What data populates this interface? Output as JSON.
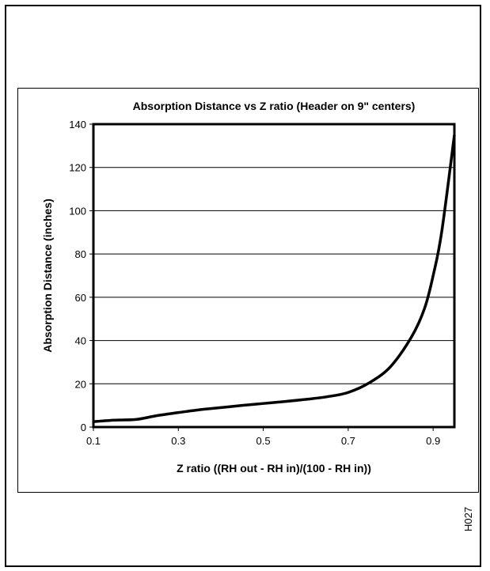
{
  "chart_data": {
    "type": "line",
    "title": "Absorption Distance vs Z ratio (Header on  9\" centers)",
    "xlabel": "Z ratio ((RH out - RH in)/(100 - RH in))",
    "ylabel": "Absorption Distance (inches)",
    "xlim": [
      0.1,
      0.95
    ],
    "ylim": [
      0,
      140
    ],
    "x_ticks": [
      0.1,
      0.3,
      0.5,
      0.7,
      0.9
    ],
    "x_tick_labels": [
      "0.1",
      "0.3",
      "0.5",
      "0.7",
      "0.9"
    ],
    "y_ticks": [
      0,
      20,
      40,
      60,
      80,
      100,
      120,
      140
    ],
    "y_tick_labels": [
      "0",
      "20",
      "40",
      "60",
      "80",
      "100",
      "120",
      "140"
    ],
    "grid": "horizontal",
    "series": [
      {
        "x": [
          0.1,
          0.15,
          0.2,
          0.25,
          0.3,
          0.35,
          0.4,
          0.45,
          0.5,
          0.55,
          0.6,
          0.65,
          0.7,
          0.75,
          0.8,
          0.85,
          0.88,
          0.9,
          0.92,
          0.95
        ],
        "y": [
          2.5,
          3.2,
          3.5,
          5.3,
          6.7,
          8.0,
          9.0,
          10.0,
          10.9,
          11.8,
          12.8,
          14.0,
          16.0,
          20.5,
          28.0,
          42.0,
          55.0,
          70.0,
          90.0,
          135.0
        ]
      }
    ]
  },
  "page_code": "H027",
  "colors": {
    "line": "#000000",
    "grid": "#000000",
    "frame": "#000000"
  }
}
